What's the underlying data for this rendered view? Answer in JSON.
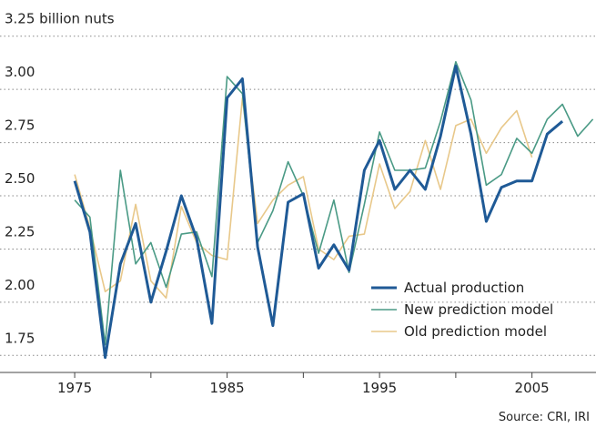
{
  "chart_data": {
    "type": "line",
    "x": [
      1975,
      1976,
      1977,
      1978,
      1979,
      1980,
      1981,
      1982,
      1983,
      1984,
      1985,
      1986,
      1987,
      1988,
      1989,
      1990,
      1991,
      1992,
      1993,
      1994,
      1995,
      1996,
      1997,
      1998,
      1999,
      2000,
      2001,
      2002,
      2003,
      2004,
      2005,
      2006,
      2007,
      2008,
      2009
    ],
    "series": [
      {
        "name": "Actual production",
        "color": "#1f5a96",
        "values": [
          2.57,
          2.33,
          1.74,
          2.18,
          2.37,
          2.0,
          2.24,
          2.5,
          2.3,
          1.9,
          2.96,
          3.05,
          2.26,
          1.89,
          2.47,
          2.51,
          2.16,
          2.27,
          2.15,
          2.62,
          2.76,
          2.53,
          2.62,
          2.53,
          2.78,
          3.11,
          2.79,
          2.38,
          2.54,
          2.57,
          2.57,
          2.79,
          2.85,
          null,
          null
        ]
      },
      {
        "name": "New prediction model",
        "color": "#4a9a85",
        "values": [
          2.48,
          2.4,
          1.8,
          2.62,
          2.18,
          2.28,
          2.07,
          2.32,
          2.33,
          2.12,
          3.06,
          2.98,
          2.28,
          2.43,
          2.66,
          2.5,
          2.23,
          2.48,
          2.14,
          2.46,
          2.8,
          2.62,
          2.62,
          2.63,
          2.85,
          3.13,
          2.95,
          2.55,
          2.6,
          2.77,
          2.7,
          2.86,
          2.93,
          2.78,
          2.86
        ]
      },
      {
        "name": "Old prediction model",
        "color": "#e8c88a",
        "values": [
          2.6,
          2.35,
          2.05,
          2.1,
          2.46,
          2.1,
          2.02,
          2.45,
          2.28,
          2.22,
          2.2,
          2.96,
          2.37,
          2.48,
          2.55,
          2.59,
          2.25,
          2.2,
          2.31,
          2.32,
          2.65,
          2.44,
          2.52,
          2.76,
          2.53,
          2.83,
          2.86,
          2.7,
          2.82,
          2.9,
          2.68,
          null,
          null,
          null,
          null
        ]
      }
    ],
    "xlim": [
      1970.1,
      2009.2
    ],
    "xticks": [
      1975,
      1985,
      1995,
      2005
    ],
    "xminorticks": [
      1980,
      1990,
      2000
    ],
    "ylim": [
      1.67,
      3.42
    ],
    "yticks": [
      {
        "value": 1.75,
        "label": "1.75"
      },
      {
        "value": 2,
        "label": "2.00"
      },
      {
        "value": 2.25,
        "label": "2.25"
      },
      {
        "value": 2.5,
        "label": "2.50"
      },
      {
        "value": 2.75,
        "label": "2.75"
      },
      {
        "value": 3,
        "label": "3.00"
      },
      {
        "value": 3.25,
        "label": "3.25 billion nuts"
      }
    ],
    "grid": true,
    "legend": "lower right",
    "source": "Source: CRI, IRI"
  }
}
